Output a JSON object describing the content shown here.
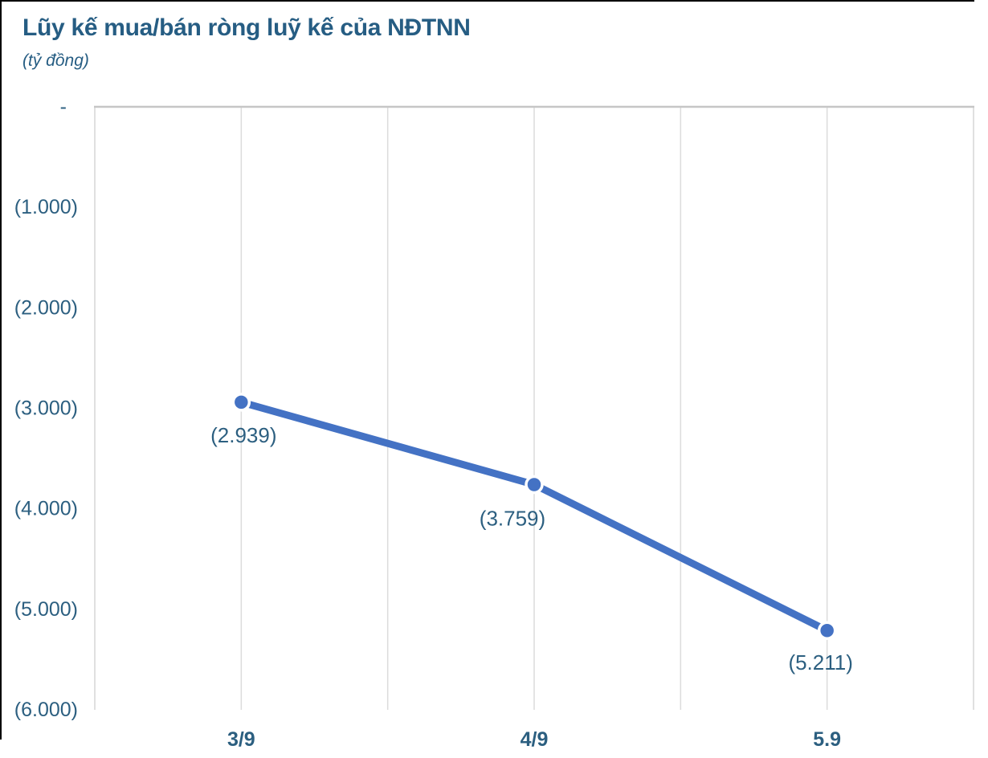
{
  "header": {
    "title": "Lũy kế mua/bán ròng luỹ kế của NĐTNN",
    "subtitle": "(tỷ đồng)"
  },
  "colors": {
    "title_text": "#265d83",
    "axis_text": "#2c5f80",
    "data_label_text": "#2c5f80",
    "line": "#4472c4",
    "marker": "#4472c4",
    "marker_ring": "#ffffff",
    "gridline": "#dcdcdc",
    "plot_border_side": "#d6d6d6",
    "plot_border_top": "#c6c6c6",
    "background": "#ffffff",
    "edge_border": "#000000"
  },
  "chart_data": {
    "type": "line",
    "title": "Lũy kế mua/bán ròng luỹ kế của NĐTNN",
    "subtitle": "(tỷ đồng)",
    "unit": "tỷ đồng",
    "categories": [
      "3/9",
      "4/9",
      "5.9"
    ],
    "series": [
      {
        "values": [
          -2939,
          -3759,
          -5211
        ],
        "data_labels": [
          "(2.939)",
          "(3.759)",
          "(5.211)"
        ]
      }
    ],
    "ylim": [
      -6000,
      0
    ],
    "y_tick_labels": [
      "-",
      "(1.000)",
      "(2.000)",
      "(3.000)",
      "(4.000)",
      "(5.000)",
      "(6.000)"
    ],
    "y_tick_values": [
      0,
      -1000,
      -2000,
      -3000,
      -4000,
      -5000,
      -6000
    ],
    "grid": "vertical-only",
    "legend": "none",
    "marker": "circle",
    "number_format": "accounting-negative-parentheses"
  }
}
